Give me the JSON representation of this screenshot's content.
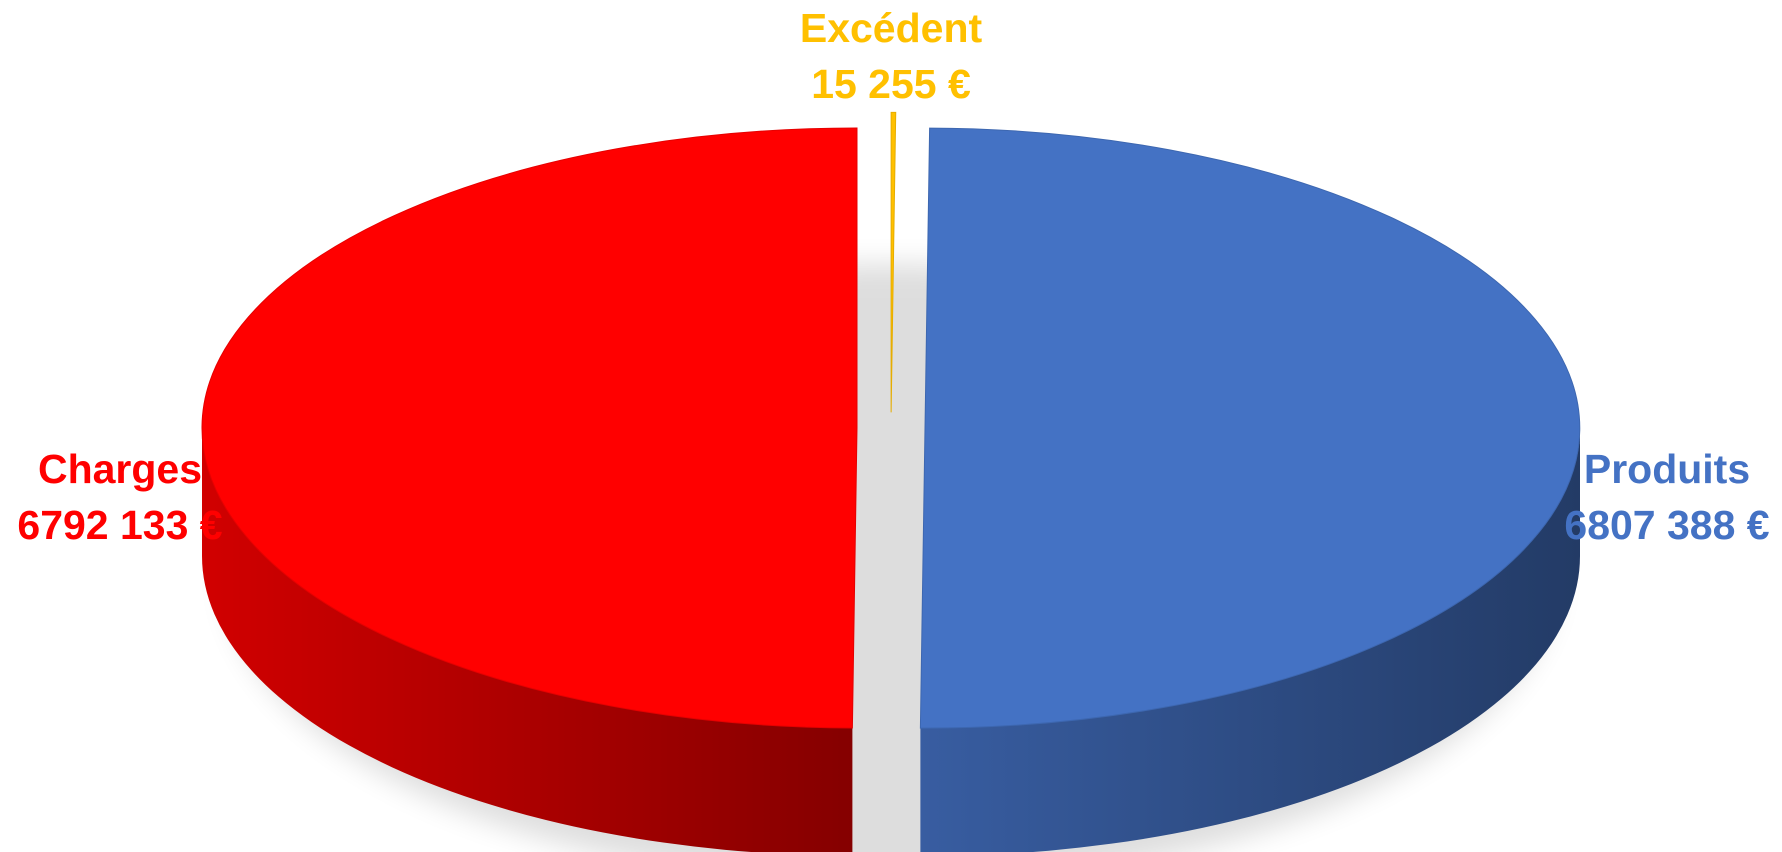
{
  "chart_data": {
    "type": "pie",
    "style": "3d-exploded",
    "slices": [
      {
        "name": "Excédent",
        "value": 15255,
        "value_label": "15 255 €",
        "color": "#FFC000"
      },
      {
        "name": "Produits",
        "value": 6807388,
        "value_label": "6807 388 €",
        "color": "#4472C4"
      },
      {
        "name": "Charges",
        "value": 6792133,
        "value_label": "6792 133 €",
        "color": "#FF0000"
      }
    ],
    "label_positions": {
      "Excédent": "top",
      "Produits": "right",
      "Charges": "left"
    },
    "legend": false
  }
}
